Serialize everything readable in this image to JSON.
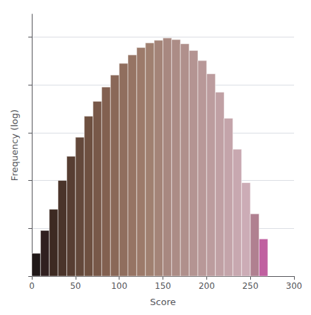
{
  "chart_data": {
    "type": "histogram",
    "xlabel": "Score",
    "ylabel": "Frequency (log)",
    "bins": [
      0,
      10,
      20,
      30,
      40,
      50,
      60,
      70,
      80,
      90,
      100,
      110,
      120,
      130,
      140,
      150,
      160,
      170,
      180,
      190,
      200,
      210,
      220,
      230,
      240,
      250,
      260,
      270
    ],
    "values": [
      3,
      9,
      25,
      100,
      320,
      800,
      2200,
      4500,
      9000,
      16000,
      28000,
      42000,
      60000,
      75000,
      85000,
      95000,
      88000,
      72000,
      52000,
      32000,
      17000,
      7000,
      2000,
      450,
      90,
      20,
      6
    ],
    "colors": [
      "#201818",
      "#302020",
      "#3d2a22",
      "#4a342a",
      "#573e32",
      "#63483a",
      "#6e5040",
      "#785848",
      "#826050",
      "#8a6858",
      "#906e5e",
      "#967464",
      "#9c7a6a",
      "#a08070",
      "#a48478",
      "#a88880",
      "#ac8c86",
      "#b0908c",
      "#b49492",
      "#b89898",
      "#bc9c9e",
      "#c0a0a4",
      "#c4a4aa",
      "#c8a8b0",
      "#ccacb6",
      "#b08090",
      "#c060a0"
    ],
    "xlim": [
      0,
      300
    ],
    "xticks": [
      0,
      50,
      100,
      150,
      200,
      250,
      300
    ],
    "ylim": [
      1,
      300000
    ],
    "yticks": [
      1,
      10,
      100,
      1000,
      10000,
      100000
    ],
    "log": "y",
    "grid": "y",
    "tick_labels": "x"
  }
}
